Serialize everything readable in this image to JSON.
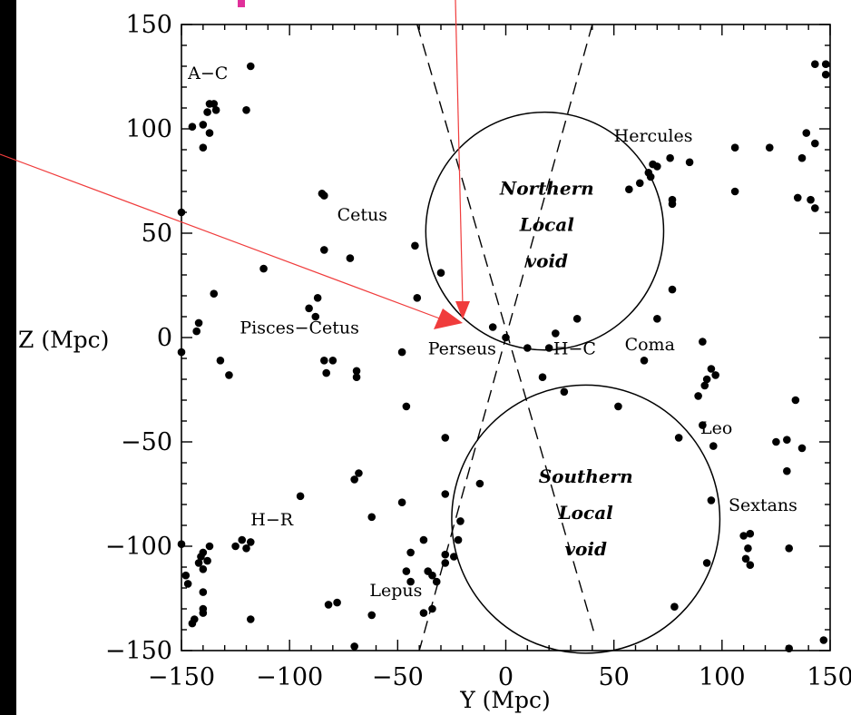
{
  "chart_data": {
    "type": "scatter",
    "xlabel": "Y (Mpc)",
    "ylabel": "Z (Mpc)",
    "xlim": [
      -150,
      150
    ],
    "ylim": [
      -150,
      150
    ],
    "x_ticks": [
      "−150",
      "−100",
      "−50",
      "0",
      "50",
      "100",
      "150"
    ],
    "y_ticks": [
      "−150",
      "−100",
      "−50",
      "0",
      "50",
      "100",
      "150"
    ],
    "grid": false,
    "points": [
      [
        -150,
        60
      ],
      [
        -150,
        -7
      ],
      [
        -150,
        -99
      ],
      [
        -148,
        -114
      ],
      [
        -147,
        -118
      ],
      [
        -145,
        -137
      ],
      [
        -144,
        -135
      ],
      [
        -142,
        -108
      ],
      [
        -141,
        -105
      ],
      [
        -140,
        -103
      ],
      [
        -140,
        -111
      ],
      [
        -140,
        -122
      ],
      [
        -140,
        -130
      ],
      [
        -140,
        -132
      ],
      [
        -138,
        -107
      ],
      [
        -137,
        -100
      ],
      [
        -140,
        102
      ],
      [
        -140,
        91
      ],
      [
        -138,
        108
      ],
      [
        -137,
        112
      ],
      [
        -135,
        112
      ],
      [
        -134,
        109
      ],
      [
        -137,
        98
      ],
      [
        -145,
        101
      ],
      [
        -143,
        3
      ],
      [
        -142,
        7
      ],
      [
        -135,
        21
      ],
      [
        -132,
        -11
      ],
      [
        -128,
        -18
      ],
      [
        -118,
        130
      ],
      [
        -120,
        109
      ],
      [
        -118,
        -98
      ],
      [
        -118,
        -135
      ],
      [
        -122,
        -97
      ],
      [
        -125,
        -100
      ],
      [
        -120,
        -101
      ],
      [
        -112,
        33
      ],
      [
        -95,
        -76
      ],
      [
        -91,
        14
      ],
      [
        -88,
        10
      ],
      [
        -87,
        19
      ],
      [
        -85,
        69
      ],
      [
        -84,
        68
      ],
      [
        -84,
        42
      ],
      [
        -84,
        -11
      ],
      [
        -83,
        -17
      ],
      [
        -80,
        -11
      ],
      [
        -82,
        -128
      ],
      [
        -78,
        -127
      ],
      [
        -72,
        38
      ],
      [
        -70,
        -68
      ],
      [
        -68,
        -65
      ],
      [
        -69,
        -16
      ],
      [
        -69,
        -19
      ],
      [
        -70,
        -148
      ],
      [
        -62,
        -86
      ],
      [
        -62,
        -133
      ],
      [
        -48,
        -79
      ],
      [
        -46,
        -33
      ],
      [
        -48,
        -7
      ],
      [
        -42,
        44
      ],
      [
        -41,
        19
      ],
      [
        -44,
        -103
      ],
      [
        -46,
        -112
      ],
      [
        -44,
        -117
      ],
      [
        -38,
        -97
      ],
      [
        -38,
        -132
      ],
      [
        -36,
        -112
      ],
      [
        -34,
        -114
      ],
      [
        -32,
        -117
      ],
      [
        -34,
        -130
      ],
      [
        -30,
        31
      ],
      [
        -28,
        -48
      ],
      [
        -28,
        -75
      ],
      [
        -28,
        -104
      ],
      [
        -28,
        -108
      ],
      [
        -24,
        -105
      ],
      [
        -22,
        -97
      ],
      [
        -21,
        -88
      ],
      [
        -12,
        -70
      ],
      [
        -6,
        5
      ],
      [
        0,
        0
      ],
      [
        10,
        -5
      ],
      [
        17,
        -19
      ],
      [
        20,
        -5
      ],
      [
        23,
        2
      ],
      [
        27,
        -26
      ],
      [
        33,
        9
      ],
      [
        52,
        -33
      ],
      [
        57,
        71
      ],
      [
        62,
        74
      ],
      [
        66,
        79
      ],
      [
        68,
        83
      ],
      [
        70,
        82
      ],
      [
        67,
        77
      ],
      [
        76,
        86
      ],
      [
        77,
        66
      ],
      [
        77,
        64
      ],
      [
        77,
        23
      ],
      [
        70,
        9
      ],
      [
        64,
        -11
      ],
      [
        85,
        84
      ],
      [
        80,
        -48
      ],
      [
        78,
        -129
      ],
      [
        91,
        -42
      ],
      [
        91,
        -2
      ],
      [
        89,
        -28
      ],
      [
        92,
        -23
      ],
      [
        93,
        -20
      ],
      [
        95,
        -15
      ],
      [
        97,
        -18
      ],
      [
        96,
        -52
      ],
      [
        93,
        -108
      ],
      [
        95,
        -78
      ],
      [
        106,
        91
      ],
      [
        106,
        70
      ],
      [
        110,
        -95
      ],
      [
        111,
        -106
      ],
      [
        112,
        -101
      ],
      [
        113,
        -94
      ],
      [
        113,
        -109
      ],
      [
        122,
        91
      ],
      [
        125,
        -50
      ],
      [
        130,
        -49
      ],
      [
        130,
        -64
      ],
      [
        131,
        -101
      ],
      [
        131,
        -149
      ],
      [
        134,
        -30
      ],
      [
        135,
        67
      ],
      [
        137,
        86
      ],
      [
        139,
        98
      ],
      [
        143,
        93
      ],
      [
        141,
        66
      ],
      [
        143,
        62
      ],
      [
        137,
        -53
      ],
      [
        143,
        131
      ],
      [
        148,
        131
      ],
      [
        148,
        126
      ],
      [
        147,
        -145
      ]
    ],
    "circles": [
      {
        "name": "Northern Local void",
        "center": [
          18,
          51
        ],
        "radius": 55
      },
      {
        "name": "Southern Local void",
        "center": [
          37,
          -87
        ],
        "radius": 62
      }
    ],
    "lines": [
      {
        "from": [
          -41,
          150
        ],
        "to": [
          41,
          -142
        ]
      },
      {
        "from": [
          40,
          150
        ],
        "to": [
          -40,
          -150
        ]
      }
    ],
    "annotations": [
      {
        "text": "A−C",
        "x": -147,
        "y": 124
      },
      {
        "text": "Hercules",
        "x": 50,
        "y": 94
      },
      {
        "text": "Cetus",
        "x": -78,
        "y": 56
      },
      {
        "text": "Pisces−Cetus",
        "x": -123,
        "y": 2
      },
      {
        "text": "Perseus",
        "x": -36,
        "y": -8
      },
      {
        "text": "H−C",
        "x": 22,
        "y": -8
      },
      {
        "text": "Coma",
        "x": 55,
        "y": -6
      },
      {
        "text": "Leo",
        "x": 90,
        "y": -46
      },
      {
        "text": "Sextans",
        "x": 103,
        "y": -83
      },
      {
        "text": "H−R",
        "x": -118,
        "y": -90
      },
      {
        "text": "Lepus",
        "x": -63,
        "y": -124
      }
    ],
    "void_labels": [
      {
        "lines": [
          "Northern",
          "Local",
          "void"
        ],
        "x": 19,
        "y": 51
      },
      {
        "lines": [
          "Southern",
          "Local",
          "void"
        ],
        "x": 37,
        "y": -87
      }
    ]
  }
}
